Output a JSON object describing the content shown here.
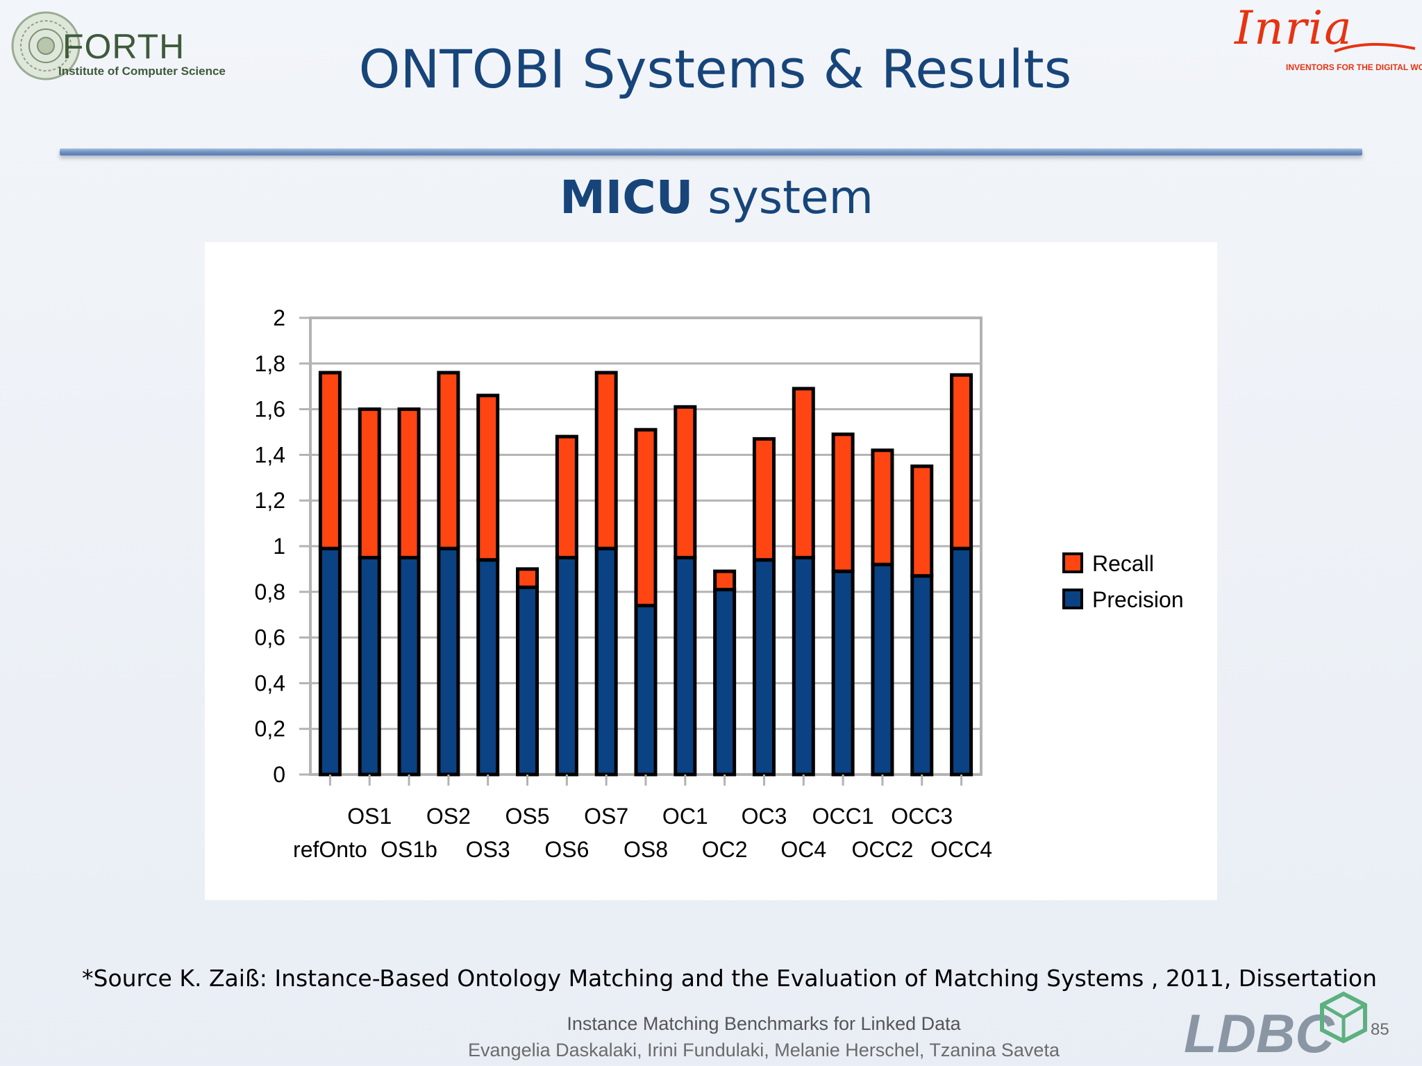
{
  "header": {
    "forth_name": "FORTH",
    "forth_subtitle": "Institute of Computer Science",
    "title": "ONTOBI Systems & Results",
    "inria_name": "Inria",
    "inria_tagline": "INVENTORS FOR THE DIGITAL WORLD"
  },
  "subtitle": {
    "bold": "MICU",
    "rest": " system"
  },
  "chart_data": {
    "type": "bar",
    "stacked": true,
    "title": "",
    "xlabel": "",
    "ylabel": "",
    "ylim": [
      0,
      2
    ],
    "yticks": [
      "0",
      "0,2",
      "0,4",
      "0,6",
      "0,8",
      "1",
      "1,2",
      "1,4",
      "1,6",
      "1,8",
      "2"
    ],
    "grid": true,
    "legend_position": "right",
    "categories": [
      "refOnto",
      "OS1",
      "OS1b",
      "OS2",
      "OS3",
      "OS5",
      "OS6",
      "OS7",
      "OS8",
      "OC1",
      "OC2",
      "OC3",
      "OC4",
      "OCC1",
      "OCC2",
      "OCC3",
      "OCC4"
    ],
    "series": [
      {
        "name": "Precision",
        "color": "#0a4283",
        "values": [
          0.99,
          0.95,
          0.95,
          0.99,
          0.94,
          0.82,
          0.95,
          0.99,
          0.74,
          0.95,
          0.81,
          0.94,
          0.95,
          0.89,
          0.92,
          0.87,
          0.99
        ]
      },
      {
        "name": "Recall",
        "color": "#ff4512",
        "values": [
          0.77,
          0.65,
          0.65,
          0.77,
          0.72,
          0.08,
          0.53,
          0.77,
          0.77,
          0.66,
          0.08,
          0.53,
          0.74,
          0.6,
          0.5,
          0.48,
          0.76
        ]
      }
    ],
    "legend": [
      "Recall",
      "Precision"
    ]
  },
  "footer": {
    "source": "*Source K. Zaiß: Instance-Based Ontology Matching and the Evaluation of Matching Systems , 2011, Dissertation",
    "presentation_title": "Instance Matching Benchmarks for Linked Data",
    "authors": "Evangelia Daskalaki, Irini Fundulaki, Melanie Herschel, Tzanina Saveta",
    "ldbc_name": "LDBC",
    "page_number": "85"
  }
}
